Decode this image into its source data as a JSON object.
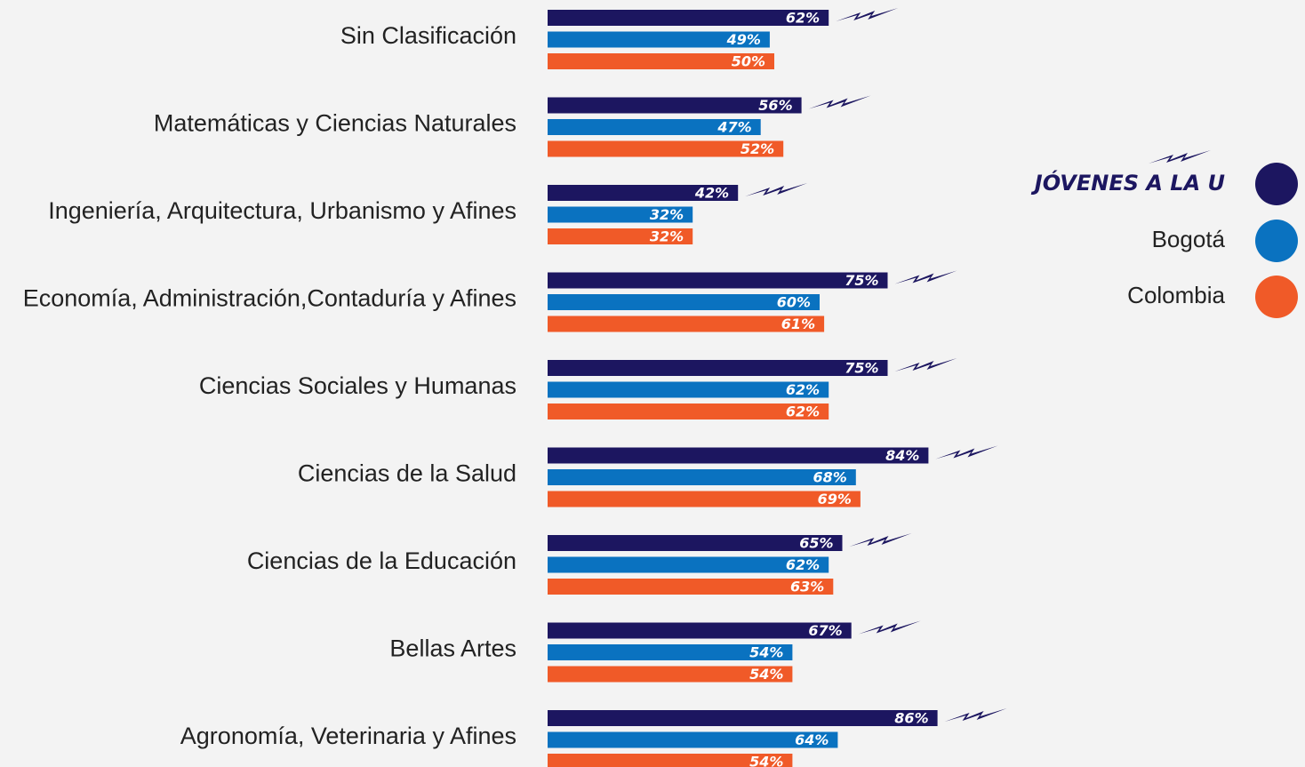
{
  "chart_data": {
    "type": "bar",
    "orientation": "horizontal",
    "categories": [
      "Sin Clasificación",
      "Matemáticas y Ciencias Naturales",
      "Ingeniería, Arquitectura, Urbanismo y Afines",
      "Economía, Administración,Contaduría y Afines",
      "Ciencias Sociales y Humanas",
      "Ciencias de la Salud",
      "Ciencias de la Educación",
      "Bellas Artes",
      "Agronomía, Veterinaria y Afines"
    ],
    "series": [
      {
        "name": "JÓVENES A LA U",
        "color": "#1c1660",
        "values": [
          62,
          56,
          42,
          75,
          75,
          84,
          65,
          67,
          86
        ],
        "value_labels": [
          "62%",
          "56%",
          "42%",
          "75%",
          "75%",
          "84%",
          "65%",
          "67%",
          "86%"
        ]
      },
      {
        "name": "Bogotá",
        "color": "#0a72c0",
        "values": [
          49,
          47,
          32,
          60,
          62,
          68,
          62,
          54,
          64
        ],
        "value_labels": [
          "49%",
          "47%",
          "32%",
          "60%",
          "62%",
          "68%",
          "62%",
          "54%",
          "64%"
        ]
      },
      {
        "name": "Colombia",
        "color": "#f05a28",
        "values": [
          50,
          52,
          32,
          61,
          62,
          69,
          63,
          54,
          54
        ],
        "value_labels": [
          "50%",
          "52%",
          "32%",
          "61%",
          "62%",
          "69%",
          "63%",
          "54%",
          "54%"
        ]
      }
    ],
    "legend": "right"
  }
}
